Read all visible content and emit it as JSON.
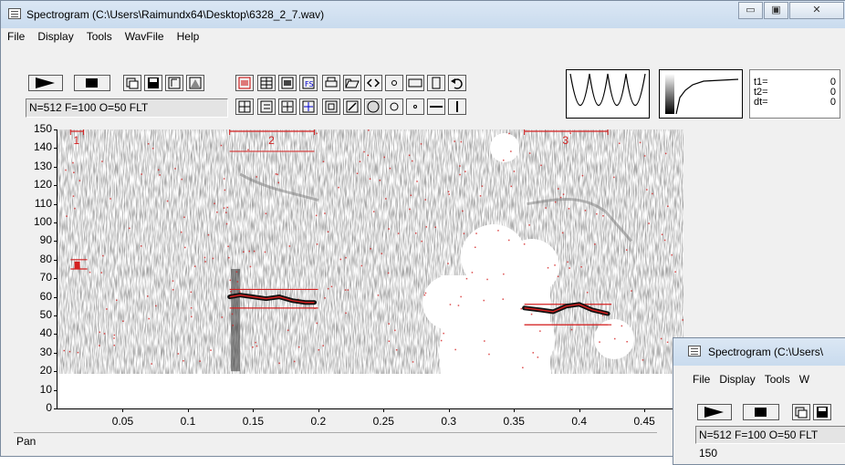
{
  "main_window": {
    "title": "Spectrogram (C:\\Users\\Raimundx64\\Desktop\\6328_2_7.wav)",
    "menu": [
      "File",
      "Display",
      "Tools",
      "WavFile",
      "Help"
    ],
    "params": "N=512 F=100 O=50 FLT",
    "readout": {
      "t1_label": "t1=",
      "t1_value": "0",
      "t2_label": "t2=",
      "t2_value": "0",
      "dt_label": "dt=",
      "dt_value": "0"
    },
    "status": "Pan"
  },
  "second_window": {
    "title": "Spectrogram (C:\\Users\\",
    "menu": [
      "File",
      "Display",
      "Tools",
      "W"
    ],
    "params": "N=512 F=100 O=50 FLT",
    "axis_top": "150"
  },
  "chart_data": {
    "type": "spectrogram",
    "x_ticks": [
      "0.05",
      "0.1",
      "0.15",
      "0.2",
      "0.25",
      "0.3",
      "0.35",
      "0.4",
      "0.45"
    ],
    "y_ticks": [
      "150",
      "140",
      "130",
      "120",
      "110",
      "100",
      "90",
      "80",
      "70",
      "60",
      "50",
      "40",
      "30",
      "20",
      "10",
      "0"
    ],
    "xlim": [
      0,
      0.48
    ],
    "ylim": [
      0,
      150
    ],
    "selections": [
      {
        "label": "1",
        "t1": 0.01,
        "t2": 0.02,
        "f_low": 75,
        "f_high": 80
      },
      {
        "label": "2",
        "t1": 0.132,
        "t2": 0.197,
        "f_low": 54,
        "f_high": 64
      },
      {
        "label": "3",
        "t1": 0.358,
        "t2": 0.422,
        "f_low": 45,
        "f_high": 56
      }
    ],
    "trace_2": [
      [
        0.132,
        60
      ],
      [
        0.14,
        61
      ],
      [
        0.15,
        60
      ],
      [
        0.16,
        59
      ],
      [
        0.17,
        60
      ],
      [
        0.18,
        58
      ],
      [
        0.19,
        57
      ],
      [
        0.197,
        57
      ]
    ],
    "trace_3": [
      [
        0.358,
        54
      ],
      [
        0.37,
        53
      ],
      [
        0.38,
        52
      ],
      [
        0.39,
        55
      ],
      [
        0.4,
        56
      ],
      [
        0.41,
        53
      ],
      [
        0.422,
        51
      ]
    ]
  },
  "colors": {
    "accent": "#d42020",
    "window_bg": "#f0f0f0",
    "title_bg": "#d2e1f1"
  },
  "icons": [
    "play-icon",
    "stop-icon",
    "save-icon",
    "print-icon",
    "open-icon",
    "undo-icon",
    "ellipse-icon",
    "rectangle-icon"
  ]
}
